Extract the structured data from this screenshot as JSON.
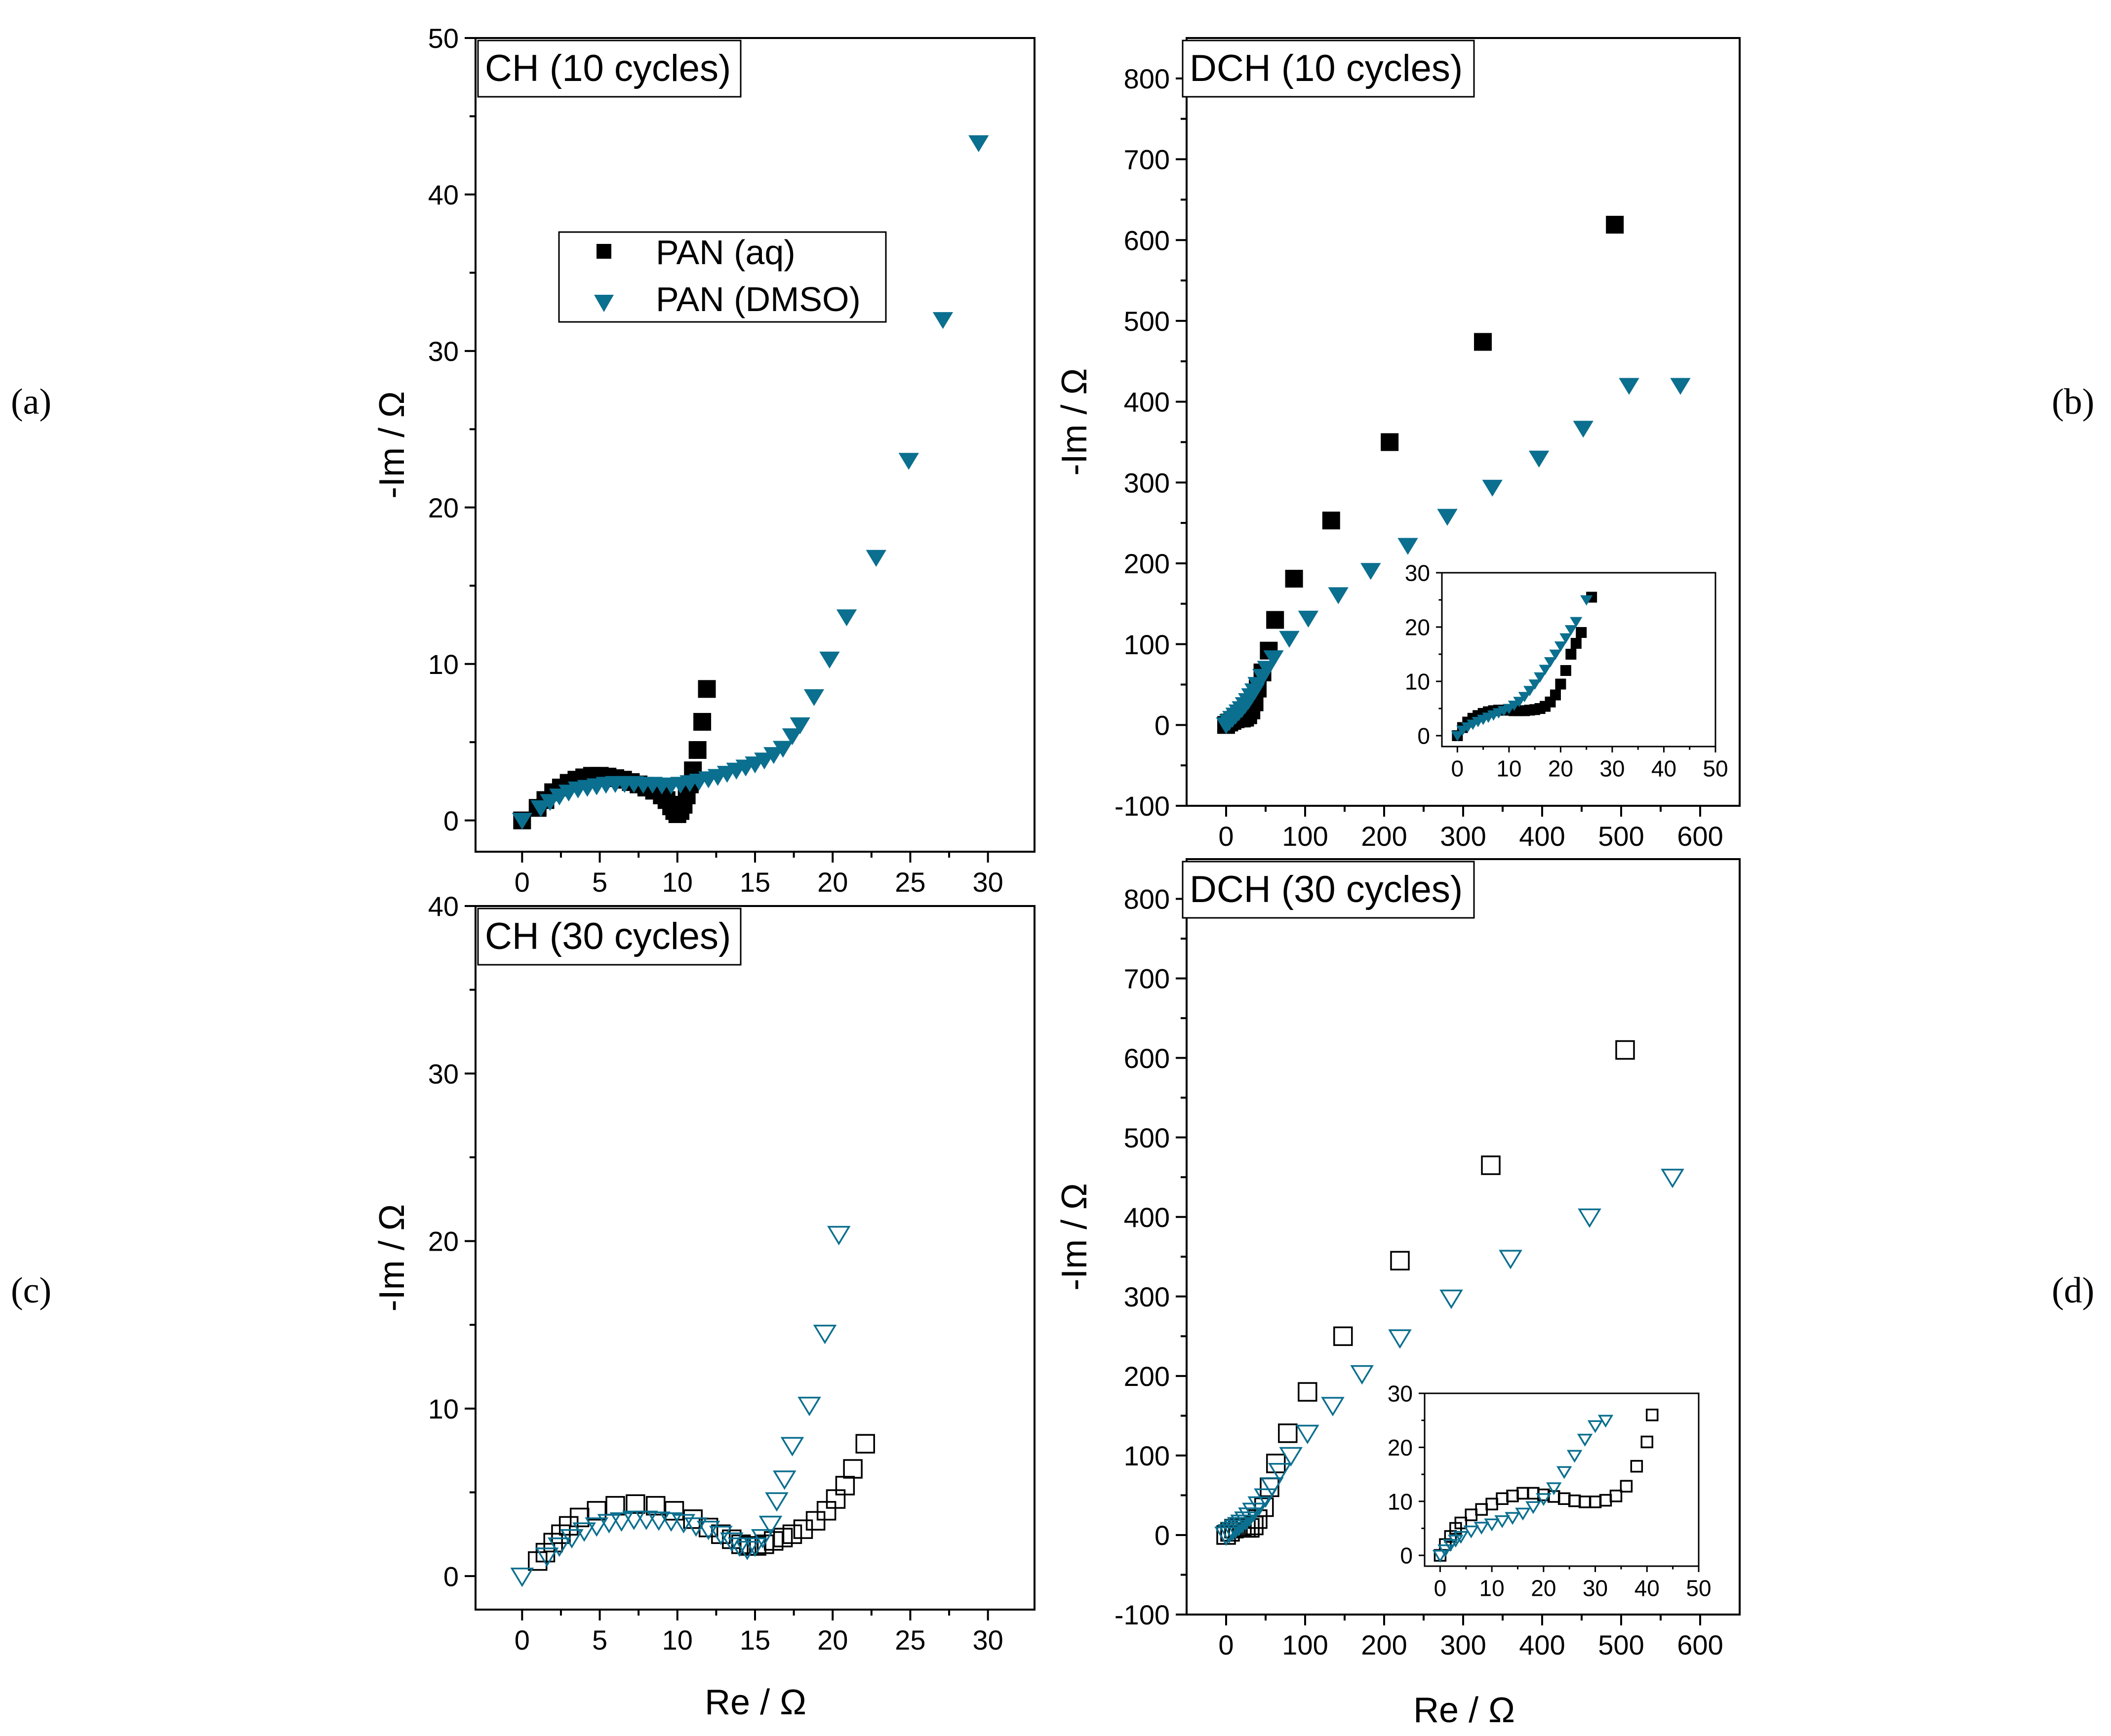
{
  "legend": [
    {
      "label": "PAN (aq)",
      "color": "#000000",
      "marker": "square"
    },
    {
      "label": "PAN (DMSO)",
      "color": "#0b6f8f",
      "marker": "triangle-down"
    }
  ],
  "panel_labels": [
    "(a)",
    "(b)",
    "(c)",
    "(d)"
  ],
  "chart_data": [
    {
      "id": "a",
      "type": "scatter",
      "title": "CH (10 cycles)",
      "xlabel": "",
      "ylabel": "-Im / Ω",
      "xlim": [
        -3,
        33
      ],
      "ylim": [
        -2,
        50
      ],
      "xticks": [
        0,
        5,
        10,
        15,
        20,
        25,
        30
      ],
      "yticks": [
        0,
        10,
        20,
        30,
        40,
        50
      ],
      "fill": true,
      "series": [
        {
          "name": "PAN (aq)",
          "marker": "square",
          "color": "#000000",
          "x": [
            0,
            1.0,
            1.5,
            2.0,
            2.5,
            3.0,
            3.5,
            4.0,
            4.5,
            5.0,
            5.5,
            6.0,
            6.5,
            7.0,
            7.5,
            8.0,
            8.5,
            9.0,
            9.3,
            9.6,
            9.8,
            10.0,
            10.2,
            10.4,
            10.6,
            10.8,
            11.0,
            11.3,
            11.6,
            11.9
          ],
          "y": [
            0,
            0.8,
            1.3,
            1.8,
            2.1,
            2.4,
            2.6,
            2.75,
            2.85,
            2.85,
            2.8,
            2.7,
            2.6,
            2.45,
            2.3,
            2.1,
            1.9,
            1.6,
            1.3,
            0.9,
            0.6,
            0.4,
            0.6,
            1.0,
            1.6,
            2.3,
            3.2,
            4.5,
            6.3,
            8.4
          ]
        },
        {
          "name": "PAN (DMSO)",
          "marker": "triangle-down",
          "color": "#0b6f8f",
          "x": [
            0,
            1.2,
            1.8,
            2.4,
            3.0,
            3.6,
            4.2,
            4.8,
            5.4,
            6.0,
            6.6,
            7.2,
            7.8,
            8.4,
            9.0,
            9.6,
            10.2,
            10.8,
            11.4,
            12.0,
            12.6,
            13.2,
            13.8,
            14.4,
            15.0,
            15.6,
            16.2,
            16.8,
            17.4,
            17.9,
            18.8,
            19.8,
            20.9,
            22.8,
            24.9,
            27.1,
            29.4
          ],
          "y": [
            0,
            0.8,
            1.2,
            1.55,
            1.8,
            2.0,
            2.1,
            2.2,
            2.3,
            2.35,
            2.35,
            2.35,
            2.3,
            2.3,
            2.25,
            2.25,
            2.3,
            2.4,
            2.5,
            2.65,
            2.8,
            3.0,
            3.2,
            3.4,
            3.6,
            3.85,
            4.2,
            4.6,
            5.4,
            6.1,
            7.9,
            10.3,
            13.0,
            16.8,
            23.0,
            32.0,
            43.3
          ]
        }
      ]
    },
    {
      "id": "b",
      "type": "scatter",
      "title": "DCH (10 cycles)",
      "xlabel": "",
      "ylabel": "-Im / Ω",
      "xlim": [
        -50,
        650
      ],
      "ylim": [
        -100,
        850
      ],
      "xticks": [
        0,
        100,
        200,
        300,
        400,
        500,
        600
      ],
      "yticks": [
        -100,
        0,
        100,
        200,
        300,
        400,
        500,
        600,
        700,
        800
      ],
      "fill": true,
      "series": [
        {
          "name": "PAN (aq)",
          "marker": "square",
          "color": "#000000",
          "x": [
            0,
            4,
            8,
            12,
            16,
            20,
            24,
            28,
            32,
            36,
            40,
            46,
            54,
            62,
            86,
            133,
            207,
            325,
            492
          ],
          "y": [
            0,
            3,
            5,
            7,
            8,
            8,
            9,
            12,
            18,
            28,
            45,
            65,
            92,
            130,
            181,
            253,
            350,
            474,
            619
          ]
        },
        {
          "name": "PAN (DMSO)",
          "marker": "triangle-down",
          "color": "#0b6f8f",
          "x": [
            0,
            4,
            8,
            12,
            16,
            20,
            24,
            28,
            32,
            36,
            40,
            46,
            52,
            60,
            80,
            104,
            142,
            183,
            230,
            280,
            337,
            396,
            452,
            510,
            575
          ],
          "y": [
            0,
            4,
            8,
            12,
            16,
            20,
            25,
            30,
            36,
            42,
            50,
            60,
            70,
            83,
            107,
            132,
            161,
            191,
            222,
            258,
            294,
            330,
            367,
            420,
            420
          ]
        }
      ],
      "inset": {
        "xlim": [
          -3,
          50
        ],
        "ylim": [
          -2,
          30
        ],
        "xticks": [
          0,
          10,
          20,
          30,
          40,
          50
        ],
        "yticks": [
          0,
          10,
          20,
          30
        ],
        "series": [
          {
            "name": "PAN (aq)",
            "marker": "square",
            "color": "#000000",
            "x": [
              0,
              1,
              2,
              3,
              4,
              5,
              6,
              7,
              8,
              9,
              10,
              11,
              12,
              13,
              14,
              15,
              16,
              17,
              18,
              19,
              20,
              21,
              22,
              23,
              24,
              26
            ],
            "y": [
              0,
              1.5,
              2.5,
              3.2,
              3.7,
              4.1,
              4.4,
              4.6,
              4.7,
              4.7,
              4.7,
              4.6,
              4.6,
              4.6,
              4.7,
              4.8,
              5.0,
              5.4,
              6.2,
              7.5,
              9.5,
              12.0,
              15.0,
              17.0,
              19.0,
              25.5
            ]
          },
          {
            "name": "PAN (DMSO)",
            "marker": "triangle-down",
            "color": "#0b6f8f",
            "x": [
              0,
              1,
              2,
              3,
              4,
              5,
              6,
              7,
              8,
              9,
              10,
              11,
              12,
              13,
              14,
              15,
              16,
              17,
              18,
              19,
              20,
              21,
              22,
              23,
              25
            ],
            "y": [
              0,
              1.0,
              1.6,
              2.1,
              2.6,
              3.0,
              3.4,
              3.8,
              4.2,
              4.6,
              5.0,
              5.6,
              6.3,
              7.2,
              8.3,
              9.5,
              10.8,
              12.2,
              13.6,
              15.0,
              16.5,
              18.0,
              19.5,
              21.0,
              25.0
            ]
          }
        ]
      }
    },
    {
      "id": "c",
      "type": "scatter",
      "title": "CH (30 cycles)",
      "xlabel": "Re / Ω",
      "ylabel": "-Im / Ω",
      "xlim": [
        -3,
        33
      ],
      "ylim": [
        -2,
        40
      ],
      "xticks": [
        0,
        5,
        10,
        15,
        20,
        25,
        30
      ],
      "yticks": [
        0,
        10,
        20,
        30,
        40
      ],
      "fill": false,
      "series": [
        {
          "name": "PAN (aq)",
          "marker": "square",
          "color": "#000000",
          "x": [
            1.0,
            1.5,
            2.0,
            2.5,
            3.0,
            3.7,
            4.8,
            6.0,
            7.3,
            8.6,
            9.8,
            11.0,
            12.0,
            12.8,
            13.5,
            14.1,
            14.6,
            15.1,
            15.6,
            16.2,
            16.8,
            17.4,
            18.1,
            18.9,
            19.6,
            20.2,
            20.8,
            21.3,
            22.1
          ],
          "y": [
            0.9,
            1.4,
            2.0,
            2.5,
            3.0,
            3.5,
            3.9,
            4.2,
            4.3,
            4.2,
            3.9,
            3.4,
            2.9,
            2.5,
            2.2,
            1.9,
            1.8,
            1.8,
            1.9,
            2.1,
            2.3,
            2.5,
            2.8,
            3.3,
            3.9,
            4.6,
            5.4,
            6.4,
            7.9
          ]
        },
        {
          "name": "PAN (DMSO)",
          "marker": "triangle-down",
          "color": "#0b6f8f",
          "x": [
            0,
            1.6,
            2.4,
            3.2,
            4.0,
            4.8,
            5.6,
            6.4,
            7.2,
            8.0,
            8.8,
            9.6,
            10.4,
            11.2,
            12.0,
            12.8,
            13.5,
            14.0,
            14.5,
            15.0,
            15.5,
            16.0,
            16.4,
            16.9,
            17.4,
            18.5,
            19.5,
            20.4
          ],
          "y": [
            0,
            1.2,
            1.8,
            2.3,
            2.7,
            3.0,
            3.2,
            3.3,
            3.4,
            3.4,
            3.35,
            3.3,
            3.2,
            3.0,
            2.8,
            2.5,
            2.1,
            1.8,
            1.6,
            1.8,
            2.3,
            3.1,
            4.5,
            5.8,
            7.8,
            10.2,
            14.5,
            20.4
          ]
        }
      ]
    },
    {
      "id": "d",
      "type": "scatter",
      "title": "DCH (30 cycles)",
      "xlabel": "Re / Ω",
      "ylabel": "-Im / Ω",
      "xlim": [
        -50,
        650
      ],
      "ylim": [
        -100,
        850
      ],
      "xticks": [
        0,
        100,
        200,
        300,
        400,
        500,
        600
      ],
      "yticks": [
        -100,
        0,
        100,
        200,
        300,
        400,
        500,
        600,
        700,
        800
      ],
      "fill": false,
      "series": [
        {
          "name": "PAN (aq)",
          "marker": "square",
          "color": "#000000",
          "x": [
            0,
            5,
            10,
            15,
            20,
            25,
            30,
            35,
            40,
            48,
            55,
            63,
            78,
            103,
            148,
            220,
            335,
            505
          ],
          "y": [
            0,
            4,
            8,
            10,
            10,
            9,
            9,
            12,
            20,
            35,
            60,
            90,
            128,
            180,
            250,
            345,
            465,
            610
          ]
        },
        {
          "name": "PAN (DMSO)",
          "marker": "triangle-down",
          "color": "#0b6f8f",
          "x": [
            0,
            4,
            8,
            12,
            16,
            20,
            25,
            30,
            35,
            42,
            50,
            58,
            68,
            82,
            103,
            135,
            172,
            220,
            285,
            360,
            460,
            565
          ],
          "y": [
            0,
            3,
            6,
            9,
            12,
            15,
            19,
            24,
            30,
            38,
            48,
            62,
            80,
            100,
            128,
            163,
            203,
            248,
            298,
            348,
            400,
            450
          ]
        }
      ],
      "inset": {
        "xlim": [
          -3,
          50
        ],
        "ylim": [
          -2,
          30
        ],
        "xticks": [
          0,
          10,
          20,
          30,
          40,
          50
        ],
        "yticks": [
          0,
          10,
          20,
          30
        ],
        "series": [
          {
            "name": "PAN (aq)",
            "marker": "square",
            "color": "#000000",
            "x": [
              0,
              1,
              2,
              3,
              4,
              6,
              8,
              10,
              12,
              14,
              16,
              18,
              20,
              22,
              24,
              26,
              28,
              30,
              32,
              34,
              36,
              38,
              40,
              41
            ],
            "y": [
              0,
              2,
              3.5,
              5,
              6,
              7.5,
              8.5,
              9.5,
              10.5,
              11,
              11.5,
              11.5,
              11.2,
              10.9,
              10.5,
              10.1,
              9.9,
              9.9,
              10.2,
              11,
              12.8,
              16.5,
              21,
              26
            ]
          },
          {
            "name": "PAN (DMSO)",
            "marker": "triangle-down",
            "color": "#0b6f8f",
            "x": [
              0,
              1,
              2,
              3,
              4,
              6,
              8,
              10,
              12,
              14,
              16,
              18,
              20,
              22,
              24,
              26,
              28,
              30,
              32
            ],
            "y": [
              0,
              1,
              2,
              2.8,
              3.5,
              4.5,
              5.2,
              5.8,
              6.4,
              7.0,
              7.8,
              9.0,
              10.5,
              12.5,
              15.5,
              18.5,
              21.5,
              24.0,
              25.0
            ]
          }
        ]
      }
    }
  ]
}
